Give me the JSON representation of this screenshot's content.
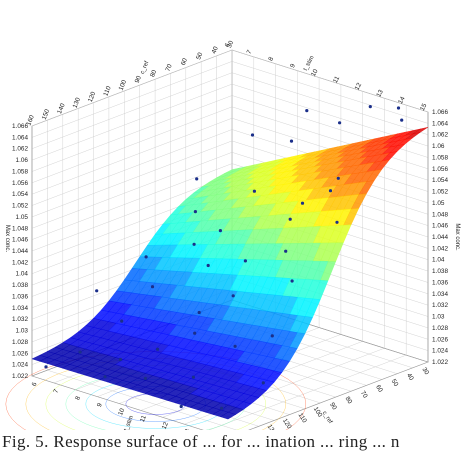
{
  "figure": {
    "caption": "Fig. 5. Response surface of ... for ... ination ... ring ... n"
  },
  "chart_data": {
    "type": "surface3d",
    "title": "",
    "z_label": "Max conc.",
    "x_label": "t_stim",
    "y_label": "c_ref",
    "x_ticks": [
      "6",
      "7",
      "8",
      "9",
      "10",
      "11",
      "12",
      "13",
      "14",
      "15"
    ],
    "y_ticks": [
      "30",
      "40",
      "50",
      "60",
      "70",
      "80",
      "90",
      "100",
      "110",
      "120",
      "130",
      "140",
      "150",
      "160"
    ],
    "z_ticks": [
      "1.022",
      "1.024",
      "1.026",
      "1.028",
      "1.03",
      "1.032",
      "1.034",
      "1.036",
      "1.038",
      "1.04",
      "1.042",
      "1.044",
      "1.046",
      "1.048",
      "1.05",
      "1.052",
      "1.054",
      "1.056",
      "1.058",
      "1.06",
      "1.062",
      "1.064",
      "1.066"
    ],
    "xlim": [
      6,
      15
    ],
    "ylim": [
      30,
      160
    ],
    "zlim": [
      1.022,
      1.066
    ],
    "grid": true,
    "colormap": "jet",
    "points": [
      {
        "x": 14.0,
        "y": 35,
        "z": 1.066
      },
      {
        "x": 14.5,
        "y": 40,
        "z": 1.065
      },
      {
        "x": 13.2,
        "y": 42,
        "z": 1.066
      },
      {
        "x": 12.0,
        "y": 45,
        "z": 1.062
      },
      {
        "x": 13.0,
        "y": 60,
        "z": 1.055
      },
      {
        "x": 12.5,
        "y": 58,
        "z": 1.052
      },
      {
        "x": 11.5,
        "y": 62,
        "z": 1.049
      },
      {
        "x": 10.5,
        "y": 55,
        "z": 1.058
      },
      {
        "x": 14.0,
        "y": 75,
        "z": 1.05
      },
      {
        "x": 12.0,
        "y": 80,
        "z": 1.043
      },
      {
        "x": 10.5,
        "y": 85,
        "z": 1.04
      },
      {
        "x": 9.0,
        "y": 80,
        "z": 1.043
      },
      {
        "x": 11.0,
        "y": 100,
        "z": 1.036
      },
      {
        "x": 9.5,
        "y": 95,
        "z": 1.039
      },
      {
        "x": 8.5,
        "y": 90,
        "z": 1.041
      },
      {
        "x": 13.5,
        "y": 110,
        "z": 1.033
      },
      {
        "x": 12.5,
        "y": 120,
        "z": 1.031
      },
      {
        "x": 10.5,
        "y": 115,
        "z": 1.034
      },
      {
        "x": 8.0,
        "y": 110,
        "z": 1.035
      },
      {
        "x": 7.0,
        "y": 100,
        "z": 1.038
      },
      {
        "x": 14.5,
        "y": 130,
        "z": 1.028
      },
      {
        "x": 12.0,
        "y": 140,
        "z": 1.027
      },
      {
        "x": 10.0,
        "y": 135,
        "z": 1.029
      },
      {
        "x": 8.0,
        "y": 130,
        "z": 1.031
      },
      {
        "x": 6.5,
        "y": 125,
        "z": 1.034
      },
      {
        "x": 14.0,
        "y": 150,
        "z": 1.025
      },
      {
        "x": 12.5,
        "y": 155,
        "z": 1.024
      },
      {
        "x": 10.5,
        "y": 150,
        "z": 1.026
      },
      {
        "x": 9.0,
        "y": 155,
        "z": 1.025
      },
      {
        "x": 7.5,
        "y": 150,
        "z": 1.027
      },
      {
        "x": 6.5,
        "y": 158,
        "z": 1.024
      },
      {
        "x": 11.5,
        "y": 70,
        "z": 1.047
      },
      {
        "x": 9.5,
        "y": 65,
        "z": 1.049
      },
      {
        "x": 13.0,
        "y": 90,
        "z": 1.04
      },
      {
        "x": 7.5,
        "y": 75,
        "z": 1.044
      },
      {
        "x": 6.5,
        "y": 60,
        "z": 1.047
      },
      {
        "x": 8.0,
        "y": 45,
        "z": 1.055
      },
      {
        "x": 10.0,
        "y": 38,
        "z": 1.061
      },
      {
        "x": 11.0,
        "y": 125,
        "z": 1.032
      },
      {
        "x": 9.0,
        "y": 145,
        "z": 1.027
      }
    ]
  }
}
